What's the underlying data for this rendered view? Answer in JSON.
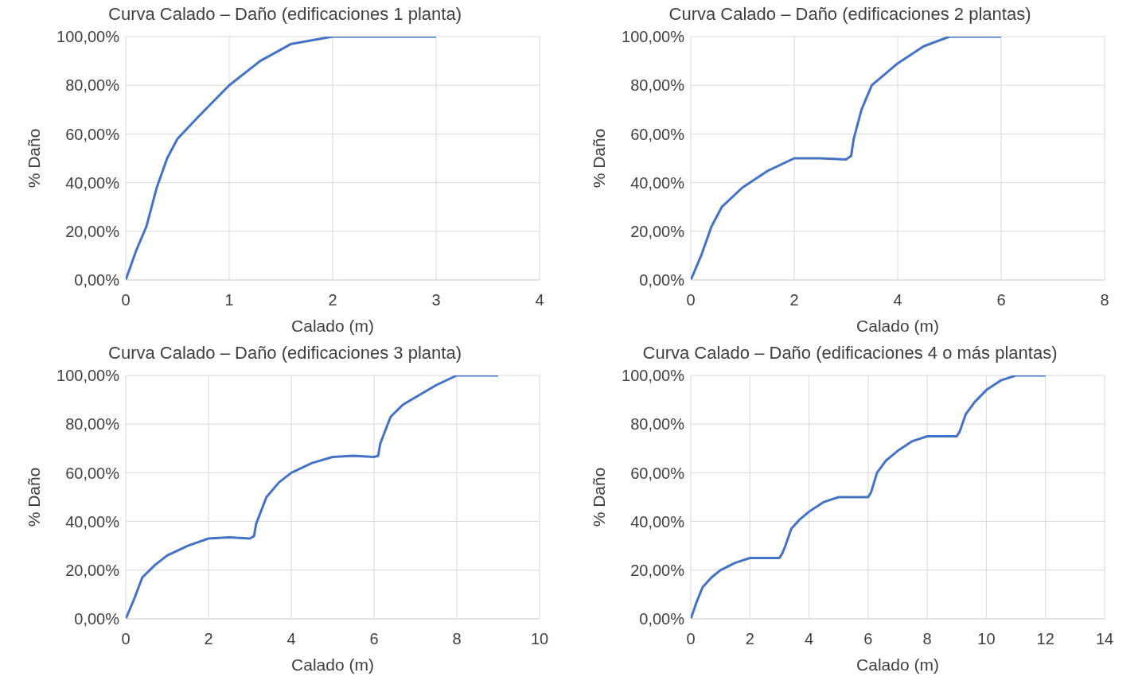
{
  "chart_data": [
    {
      "type": "line",
      "title": "Curva Calado – Daño (edificaciones 1 planta)",
      "xlabel": "Calado (m)",
      "ylabel": "% Daño",
      "grid": true,
      "marker": "none",
      "xlim": [
        0,
        4
      ],
      "xticks": [
        0,
        1,
        2,
        3,
        4
      ],
      "ylim": [
        0,
        100
      ],
      "yticks": [
        {
          "value": 0,
          "label": "0,00%"
        },
        {
          "value": 20,
          "label": "20,00%"
        },
        {
          "value": 40,
          "label": "40,00%"
        },
        {
          "value": 60,
          "label": "60,00%"
        },
        {
          "value": 80,
          "label": "80,00%"
        },
        {
          "value": 100,
          "label": "100,00%"
        }
      ],
      "series": [
        {
          "color": "#4472c4",
          "x": [
            0,
            0.1,
            0.2,
            0.3,
            0.4,
            0.5,
            0.7,
            1,
            1.3,
            1.6,
            2,
            2.5,
            3
          ],
          "values": [
            0,
            12,
            22,
            38,
            50,
            58,
            67,
            80,
            90,
            97,
            100,
            100,
            100
          ]
        }
      ]
    },
    {
      "type": "line",
      "title": "Curva Calado – Daño (edificaciones 2 plantas)",
      "xlabel": "Calado (m)",
      "ylabel": "% Daño",
      "grid": true,
      "marker": "none",
      "xlim": [
        0,
        8
      ],
      "xticks": [
        0,
        2,
        4,
        6,
        8
      ],
      "ylim": [
        0,
        100
      ],
      "yticks": [
        {
          "value": 0,
          "label": "0,00%"
        },
        {
          "value": 20,
          "label": "20,00%"
        },
        {
          "value": 40,
          "label": "40,00%"
        },
        {
          "value": 60,
          "label": "60,00%"
        },
        {
          "value": 80,
          "label": "80,00%"
        },
        {
          "value": 100,
          "label": "100,00%"
        }
      ],
      "series": [
        {
          "color": "#4472c4",
          "x": [
            0,
            0.2,
            0.4,
            0.6,
            1,
            1.5,
            2,
            2.5,
            3,
            3.1,
            3.15,
            3.3,
            3.5,
            4,
            4.5,
            5,
            6
          ],
          "values": [
            0,
            10,
            22,
            30,
            38,
            45,
            50,
            50,
            49.5,
            51,
            58,
            70,
            80,
            89,
            96,
            100,
            100
          ]
        }
      ]
    },
    {
      "type": "line",
      "title": "Curva Calado – Daño (edificaciones 3 planta)",
      "xlabel": "Calado (m)",
      "ylabel": "% Daño",
      "grid": true,
      "marker": "none",
      "xlim": [
        0,
        10
      ],
      "xticks": [
        0,
        2,
        4,
        6,
        8,
        10
      ],
      "ylim": [
        0,
        100
      ],
      "yticks": [
        {
          "value": 0,
          "label": "0,00%"
        },
        {
          "value": 20,
          "label": "20,00%"
        },
        {
          "value": 40,
          "label": "40,00%"
        },
        {
          "value": 60,
          "label": "60,00%"
        },
        {
          "value": 80,
          "label": "80,00%"
        },
        {
          "value": 100,
          "label": "100,00%"
        }
      ],
      "series": [
        {
          "color": "#4472c4",
          "x": [
            0,
            0.2,
            0.4,
            0.7,
            1,
            1.5,
            2,
            2.5,
            3,
            3.1,
            3.15,
            3.4,
            3.7,
            4,
            4.5,
            5,
            5.5,
            6,
            6.1,
            6.15,
            6.4,
            6.7,
            7,
            7.5,
            8,
            9
          ],
          "values": [
            0,
            8,
            17,
            22,
            26,
            30,
            33,
            33.5,
            33,
            34,
            39,
            50,
            56,
            60,
            64,
            66.5,
            67,
            66.5,
            67,
            72,
            83,
            88,
            91,
            96,
            100,
            100
          ]
        }
      ]
    },
    {
      "type": "line",
      "title": "Curva Calado – Daño (edificaciones 4 o más plantas)",
      "xlabel": "Calado (m)",
      "ylabel": "% Daño",
      "grid": true,
      "marker": "none",
      "xlim": [
        0,
        14
      ],
      "xticks": [
        0,
        2,
        4,
        6,
        8,
        10,
        12,
        14
      ],
      "ylim": [
        0,
        100
      ],
      "yticks": [
        {
          "value": 0,
          "label": "0,00%"
        },
        {
          "value": 20,
          "label": "20,00%"
        },
        {
          "value": 40,
          "label": "40,00%"
        },
        {
          "value": 60,
          "label": "60,00%"
        },
        {
          "value": 80,
          "label": "80,00%"
        },
        {
          "value": 100,
          "label": "100,00%"
        }
      ],
      "series": [
        {
          "color": "#4472c4",
          "x": [
            0,
            0.2,
            0.4,
            0.7,
            1,
            1.5,
            2,
            2.5,
            3,
            3.1,
            3.2,
            3.4,
            3.7,
            4,
            4.5,
            5,
            5.5,
            6,
            6.1,
            6.3,
            6.6,
            7,
            7.5,
            8,
            8.5,
            9,
            9.1,
            9.3,
            9.6,
            10,
            10.5,
            11,
            12
          ],
          "values": [
            0,
            7,
            13,
            17,
            20,
            23,
            25,
            25,
            25,
            27,
            30,
            37,
            41,
            44,
            48,
            50,
            50,
            50,
            52,
            60,
            65,
            69,
            73,
            75,
            75,
            75,
            77,
            84,
            89,
            94,
            98,
            100,
            100
          ]
        }
      ]
    }
  ]
}
